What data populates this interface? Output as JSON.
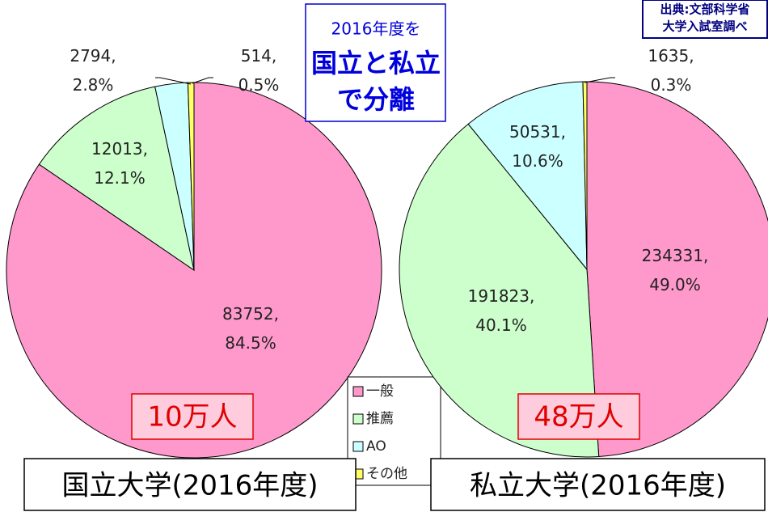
{
  "chart_data": [
    {
      "type": "pie",
      "title": "国立大学(2016年度)",
      "total_label": "10万人",
      "categories": [
        "一般",
        "推薦",
        "AO",
        "その他"
      ],
      "values": [
        83752,
        12013,
        2794,
        514
      ],
      "value_labels": [
        "83752, 84.5%",
        "12013, 12.1%",
        "2794, 2.8%",
        "514, 0.5%"
      ],
      "colors": [
        "#ff99cc",
        "#ccffcc",
        "#ccffff",
        "#ffff66"
      ]
    },
    {
      "type": "pie",
      "title": "私立大学(2016年度)",
      "total_label": "48万人",
      "categories": [
        "一般",
        "推薦",
        "AO",
        "その他"
      ],
      "values": [
        234331,
        191823,
        50531,
        1635
      ],
      "value_labels": [
        "234331, 49.0%",
        "191823, 40.1%",
        "50531, 10.6%",
        "1635, 0.3%"
      ],
      "colors": [
        "#ff99cc",
        "#ccffcc",
        "#ccffff",
        "#ffff66"
      ]
    }
  ],
  "annotation": [
    "2016年度を",
    "国立と私立",
    "で分離"
  ],
  "source": [
    "出典:文部科学省",
    "大学入試室調べ"
  ]
}
